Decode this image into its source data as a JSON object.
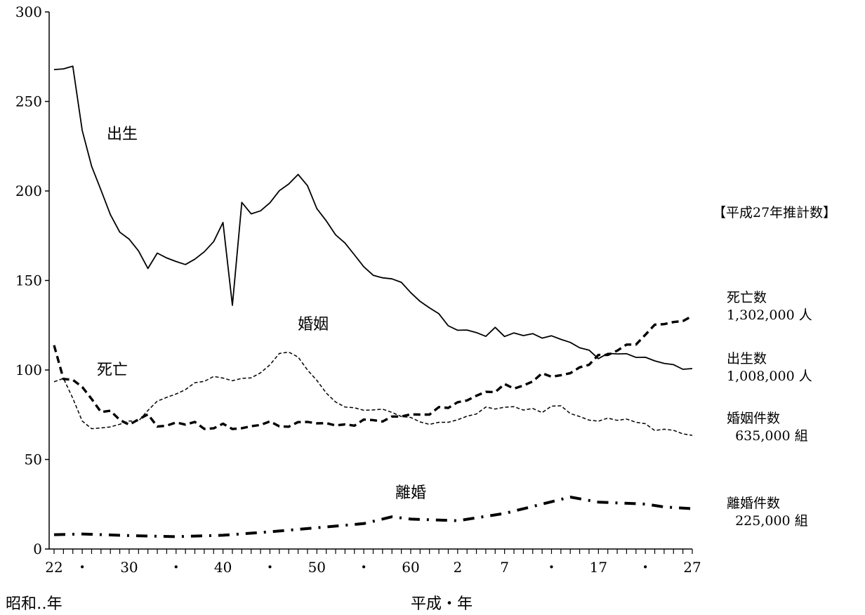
{
  "chart_data": {
    "type": "line",
    "ylim": [
      0,
      300
    ],
    "xlim": [
      1947,
      2015
    ],
    "grid": false,
    "y_ticks": [
      0,
      50,
      100,
      150,
      200,
      250,
      300
    ],
    "x_ticks": [
      {
        "year": 1947,
        "label": "22"
      },
      {
        "year": 1950,
        "label": "・"
      },
      {
        "year": 1955,
        "label": "30"
      },
      {
        "year": 1960,
        "label": "・"
      },
      {
        "year": 1965,
        "label": "40"
      },
      {
        "year": 1970,
        "label": "・"
      },
      {
        "year": 1975,
        "label": "50"
      },
      {
        "year": 1980,
        "label": "・"
      },
      {
        "year": 1985,
        "label": "60"
      },
      {
        "year": 1990,
        "label": "2"
      },
      {
        "year": 1995,
        "label": "7"
      },
      {
        "year": 2000,
        "label": "・"
      },
      {
        "year": 2005,
        "label": "17"
      },
      {
        "year": 2010,
        "label": "・"
      },
      {
        "year": 2015,
        "label": "27"
      }
    ],
    "era_labels": {
      "showa": "昭和‥年",
      "heisei": "平成・年"
    },
    "series": [
      {
        "name": "出生",
        "style": "solid",
        "x": [
          1947,
          1948,
          1949,
          1950,
          1951,
          1952,
          1953,
          1954,
          1955,
          1956,
          1957,
          1958,
          1959,
          1960,
          1961,
          1962,
          1963,
          1964,
          1965,
          1966,
          1967,
          1968,
          1969,
          1970,
          1971,
          1972,
          1973,
          1974,
          1975,
          1976,
          1977,
          1978,
          1979,
          1980,
          1981,
          1982,
          1983,
          1984,
          1985,
          1986,
          1987,
          1988,
          1989,
          1990,
          1991,
          1992,
          1993,
          1994,
          1995,
          1996,
          1997,
          1998,
          1999,
          2000,
          2001,
          2002,
          2003,
          2004,
          2005,
          2006,
          2007,
          2008,
          2009,
          2010,
          2011,
          2012,
          2013,
          2014,
          2015
        ],
        "values": [
          267.8,
          268.2,
          269.7,
          233.8,
          213.8,
          200.5,
          186.8,
          177.0,
          173.1,
          166.5,
          156.7,
          165.3,
          162.6,
          160.6,
          158.9,
          161.9,
          166.0,
          171.7,
          182.4,
          136.1,
          193.6,
          187.2,
          188.9,
          193.4,
          200.1,
          203.9,
          209.2,
          203.0,
          190.1,
          183.3,
          175.5,
          170.9,
          164.3,
          157.7,
          152.9,
          151.5,
          150.9,
          149.0,
          143.2,
          138.3,
          134.7,
          131.4,
          124.7,
          122.2,
          122.3,
          120.9,
          118.8,
          123.8,
          118.7,
          120.7,
          119.2,
          120.3,
          117.8,
          119.1,
          117.1,
          115.4,
          112.4,
          111.1,
          106.3,
          109.3,
          109.0,
          109.1,
          107.0,
          107.1,
          105.1,
          103.7,
          103.0,
          100.4,
          100.8
        ]
      },
      {
        "name": "死亡",
        "style": "thick-dashed",
        "x": [
          1947,
          1948,
          1949,
          1950,
          1951,
          1952,
          1953,
          1954,
          1955,
          1956,
          1957,
          1958,
          1959,
          1960,
          1961,
          1962,
          1963,
          1964,
          1965,
          1966,
          1967,
          1968,
          1969,
          1970,
          1971,
          1972,
          1973,
          1974,
          1975,
          1976,
          1977,
          1978,
          1979,
          1980,
          1981,
          1982,
          1983,
          1984,
          1985,
          1986,
          1987,
          1988,
          1989,
          1990,
          1991,
          1992,
          1993,
          1994,
          1995,
          1996,
          1997,
          1998,
          1999,
          2000,
          2001,
          2002,
          2003,
          2004,
          2005,
          2006,
          2007,
          2008,
          2009,
          2010,
          2011,
          2012,
          2013,
          2014,
          2015
        ],
        "values": [
          113.8,
          95.0,
          94.5,
          90.5,
          83.8,
          76.5,
          77.2,
          72.1,
          69.4,
          72.4,
          75.2,
          68.4,
          68.9,
          70.7,
          69.5,
          71.0,
          67.1,
          67.4,
          70.0,
          67.0,
          67.5,
          68.6,
          69.3,
          71.3,
          68.5,
          68.3,
          70.9,
          71.0,
          70.2,
          70.3,
          69.0,
          69.6,
          68.9,
          72.3,
          72.0,
          71.2,
          74.0,
          74.0,
          75.2,
          75.1,
          75.1,
          79.3,
          78.8,
          82.0,
          83.0,
          85.6,
          87.8,
          87.6,
          92.2,
          89.6,
          91.3,
          93.6,
          98.2,
          96.2,
          97.1,
          98.2,
          101.5,
          102.9,
          108.4,
          108.4,
          110.8,
          114.2,
          114.2,
          119.7,
          125.3,
          125.6,
          126.8,
          127.3,
          130.2
        ]
      },
      {
        "name": "婚姻",
        "style": "thin-dashed",
        "x": [
          1947,
          1948,
          1949,
          1950,
          1951,
          1952,
          1953,
          1954,
          1955,
          1956,
          1957,
          1958,
          1959,
          1960,
          1961,
          1962,
          1963,
          1964,
          1965,
          1966,
          1967,
          1968,
          1969,
          1970,
          1971,
          1972,
          1973,
          1974,
          1975,
          1976,
          1977,
          1978,
          1979,
          1980,
          1981,
          1982,
          1983,
          1984,
          1985,
          1986,
          1987,
          1988,
          1989,
          1990,
          1991,
          1992,
          1993,
          1994,
          1995,
          1996,
          1997,
          1998,
          1999,
          2000,
          2001,
          2002,
          2003,
          2004,
          2005,
          2006,
          2007,
          2008,
          2009,
          2010,
          2011,
          2012,
          2013,
          2014,
          2015
        ],
        "values": [
          93.4,
          95.3,
          84.2,
          71.5,
          67.2,
          67.6,
          68.2,
          69.7,
          71.5,
          71.5,
          77.4,
          82.6,
          84.7,
          86.6,
          89.0,
          92.9,
          93.6,
          96.4,
          95.5,
          94.0,
          95.3,
          95.6,
          98.4,
          102.9,
          109.2,
          110.0,
          107.2,
          100.0,
          94.2,
          87.1,
          82.1,
          79.3,
          78.9,
          77.5,
          77.7,
          78.1,
          76.3,
          74.0,
          73.5,
          71.0,
          69.6,
          70.8,
          70.8,
          72.2,
          74.2,
          75.4,
          79.3,
          78.2,
          79.2,
          79.5,
          77.6,
          78.5,
          76.2,
          79.8,
          80.0,
          75.7,
          74.0,
          72.0,
          71.4,
          73.1,
          71.9,
          72.6,
          70.8,
          70.0,
          66.2,
          66.9,
          66.3,
          64.3,
          63.5
        ]
      },
      {
        "name": "離婚",
        "style": "dash-dot",
        "x": [
          1947,
          1950,
          1955,
          1960,
          1965,
          1970,
          1975,
          1980,
          1983,
          1985,
          1990,
          1995,
          2000,
          2002,
          2005,
          2010,
          2012,
          2015
        ],
        "values": [
          8.0,
          8.4,
          7.5,
          6.9,
          7.7,
          9.6,
          11.9,
          14.2,
          18.0,
          16.7,
          15.8,
          19.9,
          26.4,
          29.0,
          26.2,
          25.1,
          23.5,
          22.5
        ]
      }
    ],
    "annotations": {
      "box_title": "【平成27年推計数】",
      "items": [
        {
          "label": "死亡数",
          "value": "1,302,000 人"
        },
        {
          "label": "出生数",
          "value": "1,008,000 人"
        },
        {
          "label": "婚姻件数",
          "value": "  635,000 組"
        },
        {
          "label": "離婚件数",
          "value": "  225,000 組"
        }
      ]
    }
  }
}
